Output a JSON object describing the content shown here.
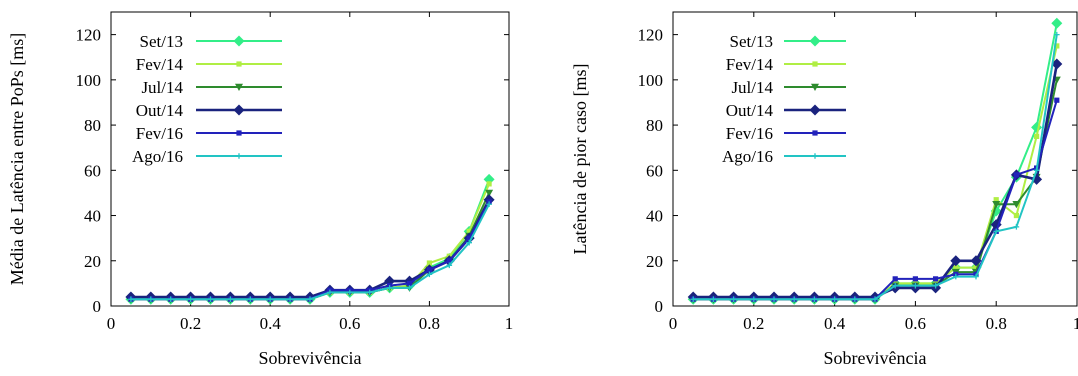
{
  "chart_data": [
    {
      "type": "line",
      "title": "",
      "xlabel": "Sobrevivência",
      "ylabel": "Média de Latência entre PoPs [ms]",
      "xlim": [
        0,
        1
      ],
      "ylim": [
        0,
        130
      ],
      "xticks": [
        0,
        0.2,
        0.4,
        0.6,
        0.8,
        1
      ],
      "yticks": [
        0,
        20,
        40,
        60,
        80,
        100,
        120
      ],
      "xtick_labels": [
        "0",
        "0.2",
        "0.4",
        "0.6",
        "0.8",
        "1"
      ],
      "ytick_labels": [
        "0",
        "20",
        "40",
        "60",
        "80",
        "100",
        "120"
      ],
      "grid": false,
      "legend_position": "top-left",
      "x": [
        0.05,
        0.1,
        0.15,
        0.2,
        0.25,
        0.3,
        0.35,
        0.4,
        0.45,
        0.5,
        0.55,
        0.6,
        0.65,
        0.7,
        0.75,
        0.8,
        0.85,
        0.9,
        0.95
      ],
      "series": [
        {
          "name": "Set/13",
          "color": "#33ee88",
          "marker": "diamond",
          "values": [
            3,
            3,
            3,
            3,
            3,
            3,
            3,
            3,
            3,
            3,
            6,
            6,
            6,
            8,
            9,
            17,
            21,
            33,
            56
          ]
        },
        {
          "name": "Fev/14",
          "color": "#b0ee44",
          "marker": "square",
          "values": [
            3,
            3,
            3,
            3,
            3,
            3,
            3,
            3,
            3,
            3,
            6,
            6,
            6,
            8,
            9,
            19,
            22,
            33,
            54
          ]
        },
        {
          "name": "Jul/14",
          "color": "#2e8b2e",
          "marker": "triangle-down",
          "values": [
            3,
            3,
            3,
            3,
            3,
            3,
            3,
            3,
            3,
            3,
            6,
            6,
            6,
            8,
            8,
            16,
            20,
            31,
            50
          ]
        },
        {
          "name": "Out/14",
          "color": "#1a237e",
          "marker": "diamond",
          "values": [
            4,
            4,
            4,
            4,
            4,
            4,
            4,
            4,
            4,
            4,
            7,
            7,
            7,
            11,
            11,
            16,
            20,
            30,
            47
          ]
        },
        {
          "name": "Fev/16",
          "color": "#2222bb",
          "marker": "square",
          "values": [
            3,
            3,
            3,
            3,
            3,
            3,
            3,
            3,
            3,
            3,
            7,
            7,
            7,
            9,
            10,
            16,
            20,
            30,
            46
          ]
        },
        {
          "name": "Ago/16",
          "color": "#22c4c4",
          "marker": "plus",
          "values": [
            3,
            3,
            3,
            3,
            3,
            3,
            3,
            3,
            3,
            3,
            6,
            6,
            6,
            8,
            8,
            14,
            18,
            28,
            45
          ]
        }
      ]
    },
    {
      "type": "line",
      "title": "",
      "xlabel": "Sobrevivência",
      "ylabel": "Latência de pior caso [ms]",
      "xlim": [
        0,
        1
      ],
      "ylim": [
        0,
        130
      ],
      "xticks": [
        0,
        0.2,
        0.4,
        0.6,
        0.8,
        1
      ],
      "yticks": [
        0,
        20,
        40,
        60,
        80,
        100,
        120
      ],
      "xtick_labels": [
        "0",
        "0.2",
        "0.4",
        "0.6",
        "0.8",
        "1"
      ],
      "ytick_labels": [
        "0",
        "20",
        "40",
        "60",
        "80",
        "100",
        "120"
      ],
      "grid": false,
      "legend_position": "top-left",
      "x": [
        0.05,
        0.1,
        0.15,
        0.2,
        0.25,
        0.3,
        0.35,
        0.4,
        0.45,
        0.5,
        0.55,
        0.6,
        0.65,
        0.7,
        0.75,
        0.8,
        0.85,
        0.9,
        0.95
      ],
      "series": [
        {
          "name": "Set/13",
          "color": "#33ee88",
          "marker": "diamond",
          "values": [
            3,
            3,
            3,
            3,
            3,
            3,
            3,
            3,
            3,
            3,
            10,
            10,
            10,
            17,
            17,
            42,
            57,
            79,
            125
          ]
        },
        {
          "name": "Fev/14",
          "color": "#b0ee44",
          "marker": "square",
          "values": [
            3,
            3,
            3,
            3,
            3,
            3,
            3,
            3,
            3,
            3,
            10,
            10,
            10,
            17,
            17,
            47,
            40,
            75,
            115
          ]
        },
        {
          "name": "Jul/14",
          "color": "#2e8b2e",
          "marker": "triangle-down",
          "values": [
            3,
            3,
            3,
            3,
            3,
            3,
            3,
            3,
            3,
            3,
            9,
            9,
            9,
            15,
            15,
            45,
            45,
            57,
            100
          ]
        },
        {
          "name": "Out/14",
          "color": "#1a237e",
          "marker": "diamond",
          "values": [
            4,
            4,
            4,
            4,
            4,
            4,
            4,
            4,
            4,
            4,
            8,
            8,
            8,
            20,
            20,
            36,
            58,
            56,
            107
          ]
        },
        {
          "name": "Fev/16",
          "color": "#2222bb",
          "marker": "square",
          "values": [
            3,
            3,
            3,
            3,
            3,
            3,
            3,
            3,
            3,
            3,
            12,
            12,
            12,
            14,
            14,
            33,
            58,
            61,
            91
          ]
        },
        {
          "name": "Ago/16",
          "color": "#22c4c4",
          "marker": "plus",
          "values": [
            3,
            3,
            3,
            3,
            3,
            3,
            3,
            3,
            3,
            3,
            9,
            9,
            9,
            13,
            13,
            33,
            35,
            60,
            120
          ]
        }
      ]
    }
  ]
}
